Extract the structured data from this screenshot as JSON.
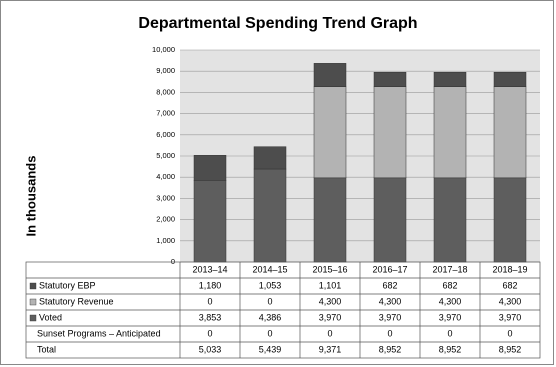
{
  "chart_data": {
    "type": "stacked-bar",
    "title": "Departmental Spending Trend Graph",
    "y_label": "In thousands",
    "categories": [
      "2013–14",
      "2014–15",
      "2015–16",
      "2016–17",
      "2017–18",
      "2018–19"
    ],
    "series": [
      {
        "name": "Statutory EBP",
        "color": "#4d4d4d",
        "values": [
          1180,
          1053,
          1101,
          682,
          682,
          682
        ],
        "value_labels": [
          "1,180",
          "1,053",
          "1,101",
          "682",
          "682",
          "682"
        ]
      },
      {
        "name": "Statutory Revenue",
        "color": "#b3b3b3",
        "values": [
          0,
          0,
          4300,
          4300,
          4300,
          4300
        ],
        "value_labels": [
          "0",
          "0",
          "4,300",
          "4,300",
          "4,300",
          "4,300"
        ]
      },
      {
        "name": "Voted",
        "color": "#5e5e5e",
        "values": [
          3853,
          4386,
          3970,
          3970,
          3970,
          3970
        ],
        "value_labels": [
          "3,853",
          "4,386",
          "3,970",
          "3,970",
          "3,970",
          "3,970"
        ]
      },
      {
        "name": "Sunset Programs – Anticipated",
        "values": [
          0,
          0,
          0,
          0,
          0,
          0
        ],
        "value_labels": [
          "0",
          "0",
          "0",
          "0",
          "0",
          "0"
        ]
      }
    ],
    "total": {
      "name": "Total",
      "values": [
        5033,
        5439,
        9371,
        8952,
        8952,
        8952
      ],
      "value_labels": [
        "5,033",
        "5,439",
        "9,371",
        "8,952",
        "8,952",
        "8,952"
      ]
    },
    "ylim": [
      0,
      10000
    ],
    "yticks": [
      0,
      {
        "value": 1000,
        "label": "1,000"
      },
      {
        "value": 2000,
        "label": "2,000"
      },
      {
        "value": 3000,
        "label": "3,000"
      },
      {
        "value": 4000,
        "label": "4,000"
      },
      {
        "value": 5000,
        "label": "5,000"
      },
      {
        "value": 6000,
        "label": "6,000"
      },
      {
        "value": 7000,
        "label": "7,000"
      },
      {
        "value": 8000,
        "label": "8,000"
      },
      {
        "value": 9000,
        "label": "9,000"
      },
      {
        "value": 10000,
        "label": "10,000"
      }
    ],
    "grid": true
  }
}
